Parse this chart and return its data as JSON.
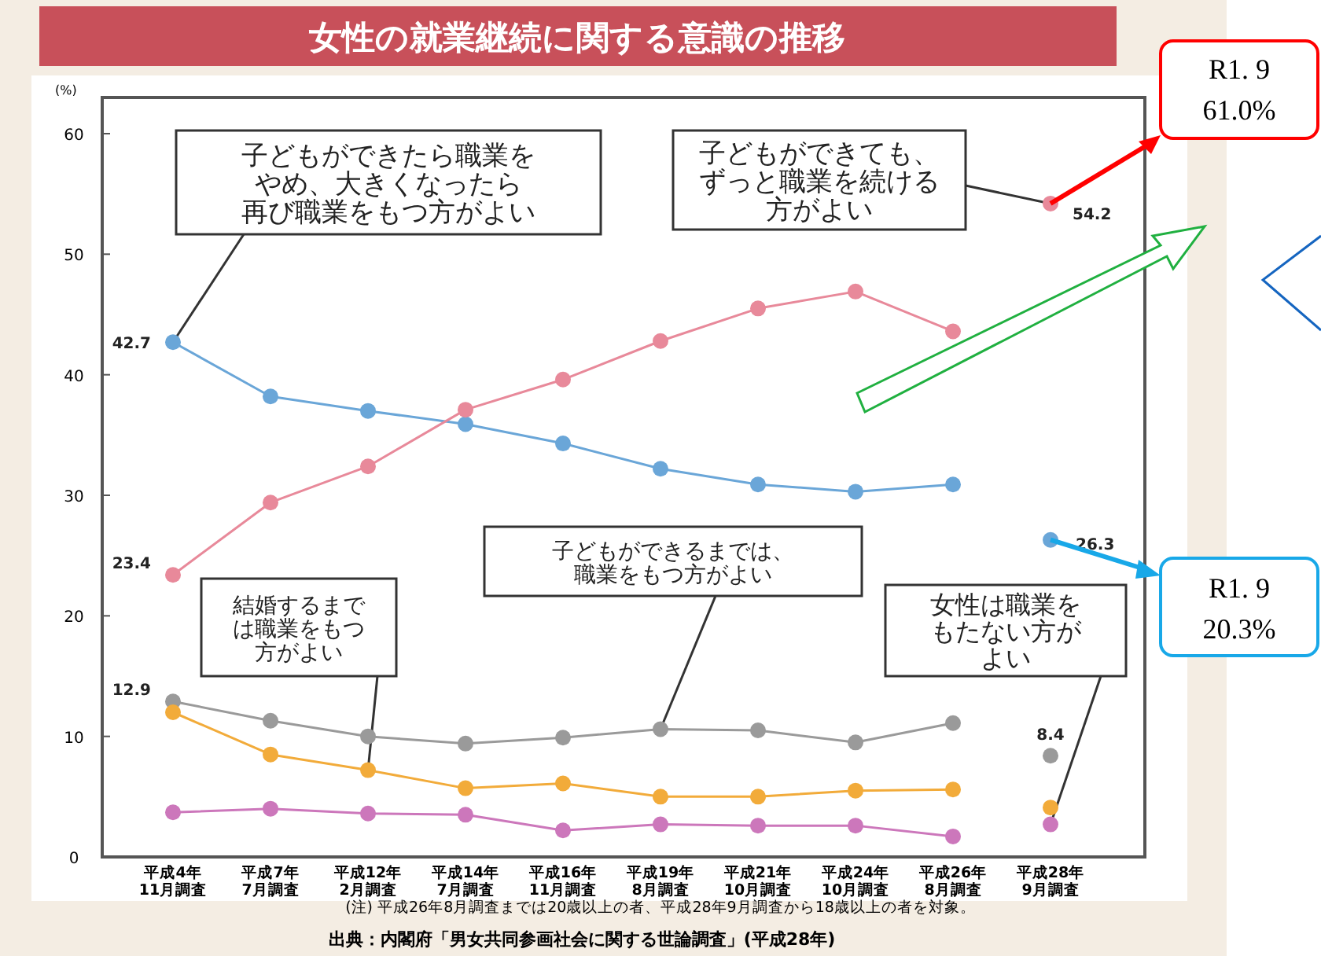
{
  "chart_data": {
    "type": "line",
    "title": "女性の就業継続に関する意識の推移",
    "ylabel": "(%)",
    "categories": [
      "平成4年\n11月調査",
      "平成7年\n7月調査",
      "平成12年\n2月調査",
      "平成14年\n7月調査",
      "平成16年\n11月調査",
      "平成19年\n8月調査",
      "平成21年\n10月調査",
      "平成24年\n10月調査",
      "平成26年\n8月調査",
      "平成28年\n9月調査"
    ],
    "ylim": [
      0,
      63
    ],
    "yticks": [
      0,
      10,
      20,
      30,
      40,
      50,
      60
    ],
    "grid": false,
    "marker": "circle",
    "line_style": "solid",
    "series": [
      {
        "name": "子どもができたら職業をやめ、大きくなったら再び職業をもつ方がよい",
        "color": "#6aa6d8",
        "values": [
          42.7,
          38.2,
          37.0,
          35.9,
          34.3,
          32.2,
          30.9,
          30.3,
          30.9,
          null
        ],
        "value_labels": [
          "42.7",
          null,
          null,
          null,
          null,
          null,
          null,
          null,
          null,
          null
        ]
      },
      {
        "color": "#e8899a",
        "values": [
          23.4,
          29.4,
          32.4,
          37.1,
          39.6,
          42.8,
          45.5,
          46.9,
          43.6,
          null
        ],
        "value_labels": [
          "23.4",
          null,
          null,
          null,
          null,
          null,
          null,
          null,
          null,
          null
        ]
      },
      {
        "name": "子どもができるまでは、職業をもつ方がよい",
        "color": "#9a9a9a",
        "values": [
          12.9,
          11.3,
          10.0,
          9.4,
          9.9,
          10.6,
          10.5,
          9.5,
          11.1,
          null
        ],
        "value_labels": [
          "12.9",
          null,
          null,
          null,
          null,
          null,
          null,
          null,
          null,
          null
        ]
      },
      {
        "name": "結婚するまでは職業をもつ方がよい",
        "color": "#f2ab3a",
        "values": [
          12.0,
          8.5,
          7.2,
          5.7,
          6.1,
          5.0,
          5.0,
          5.5,
          5.6,
          null
        ]
      },
      {
        "color": "#cc77bb",
        "values": [
          3.7,
          4.0,
          3.6,
          3.5,
          2.2,
          2.7,
          2.6,
          2.6,
          1.7,
          null
        ]
      },
      {
        "type": "scatter",
        "color": "#6aa6d8",
        "values": [
          null,
          null,
          null,
          null,
          null,
          null,
          null,
          null,
          null,
          26.3
        ],
        "value_labels": [
          null,
          null,
          null,
          null,
          null,
          null,
          null,
          null,
          null,
          "26.3"
        ]
      },
      {
        "type": "scatter",
        "name": "子どもができても、ずっと職業を続ける方がよい",
        "color": "#e8899a",
        "values": [
          null,
          null,
          null,
          null,
          null,
          null,
          null,
          null,
          null,
          54.2
        ],
        "value_labels": [
          null,
          null,
          null,
          null,
          null,
          null,
          null,
          null,
          null,
          "54.2"
        ]
      },
      {
        "type": "scatter",
        "color": "#9a9a9a",
        "values": [
          null,
          null,
          null,
          null,
          null,
          null,
          null,
          null,
          null,
          8.4
        ],
        "value_labels": [
          null,
          null,
          null,
          null,
          null,
          null,
          null,
          null,
          null,
          "8.4"
        ]
      },
      {
        "type": "scatter",
        "color": "#f2ab3a",
        "values": [
          null,
          null,
          null,
          null,
          null,
          null,
          null,
          null,
          null,
          4.1
        ]
      },
      {
        "type": "scatter",
        "name": "女性は職業をもたない方がよい",
        "color": "#cc77bb",
        "values": [
          null,
          null,
          null,
          null,
          null,
          null,
          null,
          null,
          null,
          2.7
        ]
      }
    ],
    "annotations": [
      "(注) 平成26年8月調査までは20歳以上の者、平成28年9月調査から18歳以上の者を対象。",
      "出典：内閣府「男女共同参画社会に関する世論調査」(平成28年)",
      "R1. 9\n61.0%",
      "R1. 9\n20.3%"
    ]
  }
}
